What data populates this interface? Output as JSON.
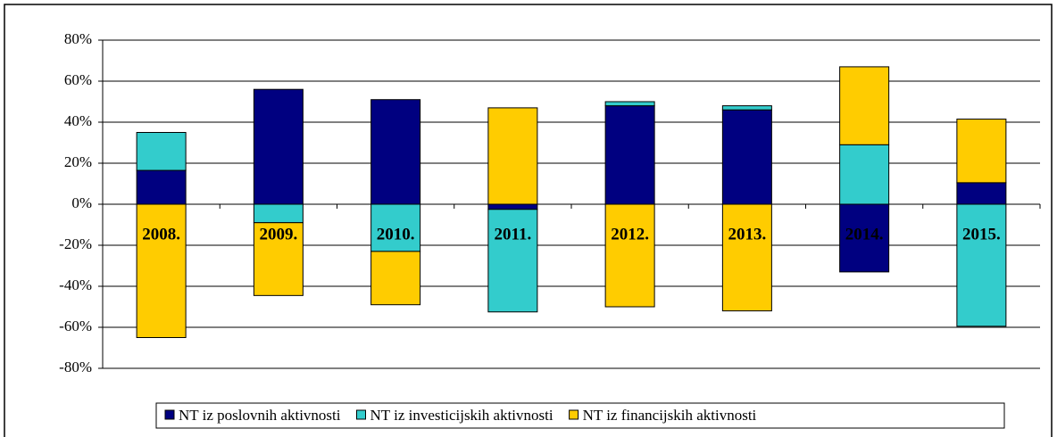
{
  "chart_data": {
    "type": "stacked_bar",
    "categories": [
      "2008.",
      "2009.",
      "2010.",
      "2011.",
      "2012.",
      "2013.",
      "2014.",
      "2015."
    ],
    "series": [
      {
        "name": "NT iz poslovnih aktivnosti",
        "color": "#000080",
        "values": [
          16.5,
          56,
          51,
          -2.5,
          48,
          46,
          -33,
          10.5
        ]
      },
      {
        "name": "NT iz investicijskih aktivnosti",
        "color": "#33CCCC",
        "values": [
          18.5,
          -9,
          -23,
          -50,
          2,
          2,
          29,
          -59.5
        ]
      },
      {
        "name": "NT iz financijskih aktivnosti",
        "color": "#FFCC00",
        "values": [
          -65,
          -35.5,
          -26,
          47,
          -50,
          -52,
          38,
          31
        ]
      }
    ],
    "ylim": [
      -80,
      80
    ],
    "yticks": [
      {
        "value": -80,
        "label": "-80%"
      },
      {
        "value": -60,
        "label": "-60%"
      },
      {
        "value": -40,
        "label": "-40%"
      },
      {
        "value": -20,
        "label": "-20%"
      },
      {
        "value": 0,
        "label": "0%"
      },
      {
        "value": 20,
        "label": "20%"
      },
      {
        "value": 40,
        "label": "40%"
      },
      {
        "value": 60,
        "label": "60%"
      },
      {
        "value": 80,
        "label": "80%"
      }
    ],
    "grid": true,
    "legend": "bottom"
  }
}
